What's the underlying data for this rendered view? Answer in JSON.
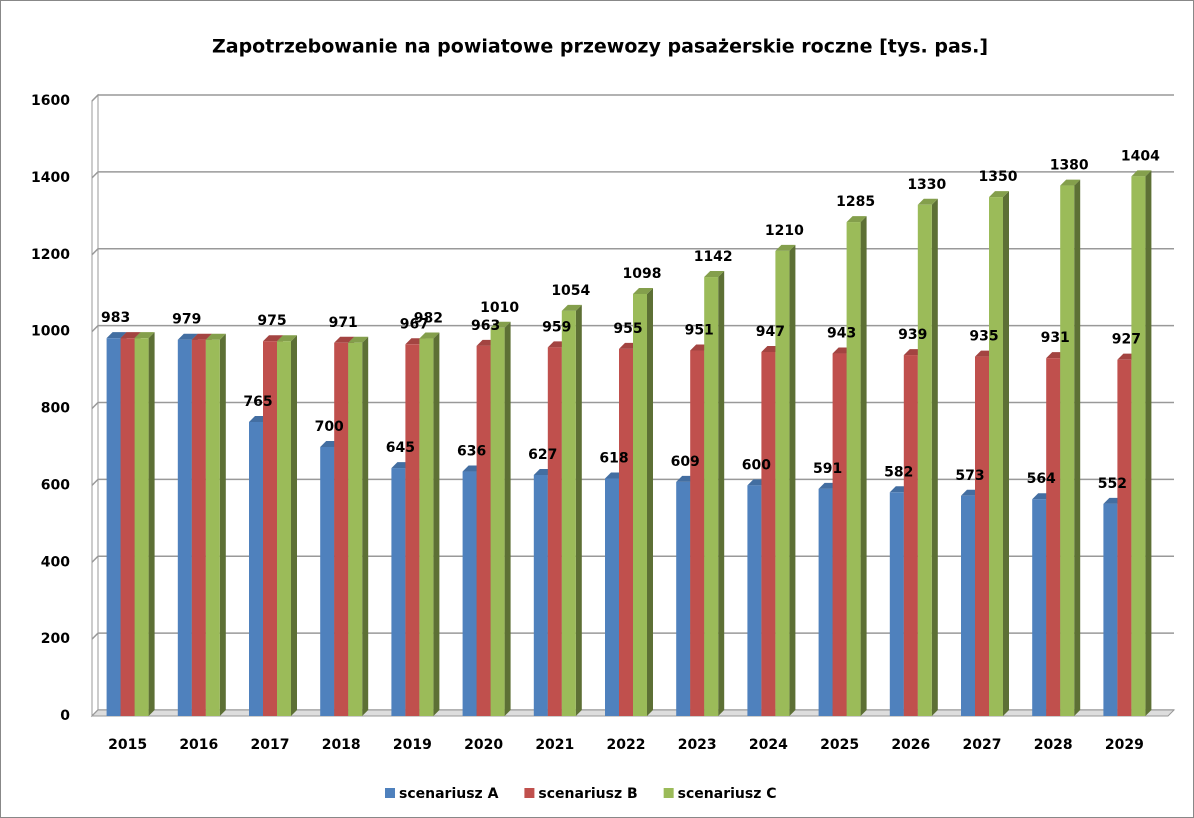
{
  "chart_data": {
    "type": "bar",
    "title": "Zapotrzebowanie na powiatowe przewozy pasażerskie roczne [tys. pas.]",
    "categories": [
      "2015",
      "2016",
      "2017",
      "2018",
      "2019",
      "2020",
      "2021",
      "2022",
      "2023",
      "2024",
      "2025",
      "2026",
      "2027",
      "2028",
      "2029"
    ],
    "series": [
      {
        "name": "scenariusz A",
        "color": "#4f81bd",
        "values": [
          983,
          979,
          765,
          700,
          645,
          636,
          627,
          618,
          609,
          600,
          591,
          582,
          573,
          564,
          552
        ],
        "value_labels": [
          "983",
          "979",
          "765",
          "700",
          "645",
          "636",
          "627",
          "618",
          "609",
          "600",
          "591",
          "582",
          "573",
          "564",
          "552"
        ]
      },
      {
        "name": "scenariusz B",
        "color": "#c0504d",
        "values": [
          983,
          979,
          975,
          971,
          967,
          963,
          959,
          955,
          951,
          947,
          943,
          939,
          935,
          931,
          927
        ],
        "value_labels": [
          null,
          null,
          "975",
          "971",
          "967",
          "963",
          "959",
          "955",
          "951",
          "947",
          "943",
          "939",
          "935",
          "931",
          "927"
        ]
      },
      {
        "name": "scenariusz C",
        "color": "#9bbb59",
        "values": [
          983,
          979,
          975,
          971,
          982,
          1010,
          1054,
          1098,
          1142,
          1210,
          1285,
          1330,
          1350,
          1380,
          1404
        ],
        "value_labels": [
          null,
          null,
          null,
          null,
          "982",
          "1010",
          "1054",
          "1098",
          "1142",
          "1210",
          "1285",
          "1330",
          "1350",
          "1380",
          "1404"
        ]
      }
    ],
    "ylim": [
      0,
      1600
    ],
    "yticks": [
      0,
      200,
      400,
      600,
      800,
      1000,
      1200,
      1400,
      1600
    ],
    "grid": true,
    "legend": "bottom"
  }
}
